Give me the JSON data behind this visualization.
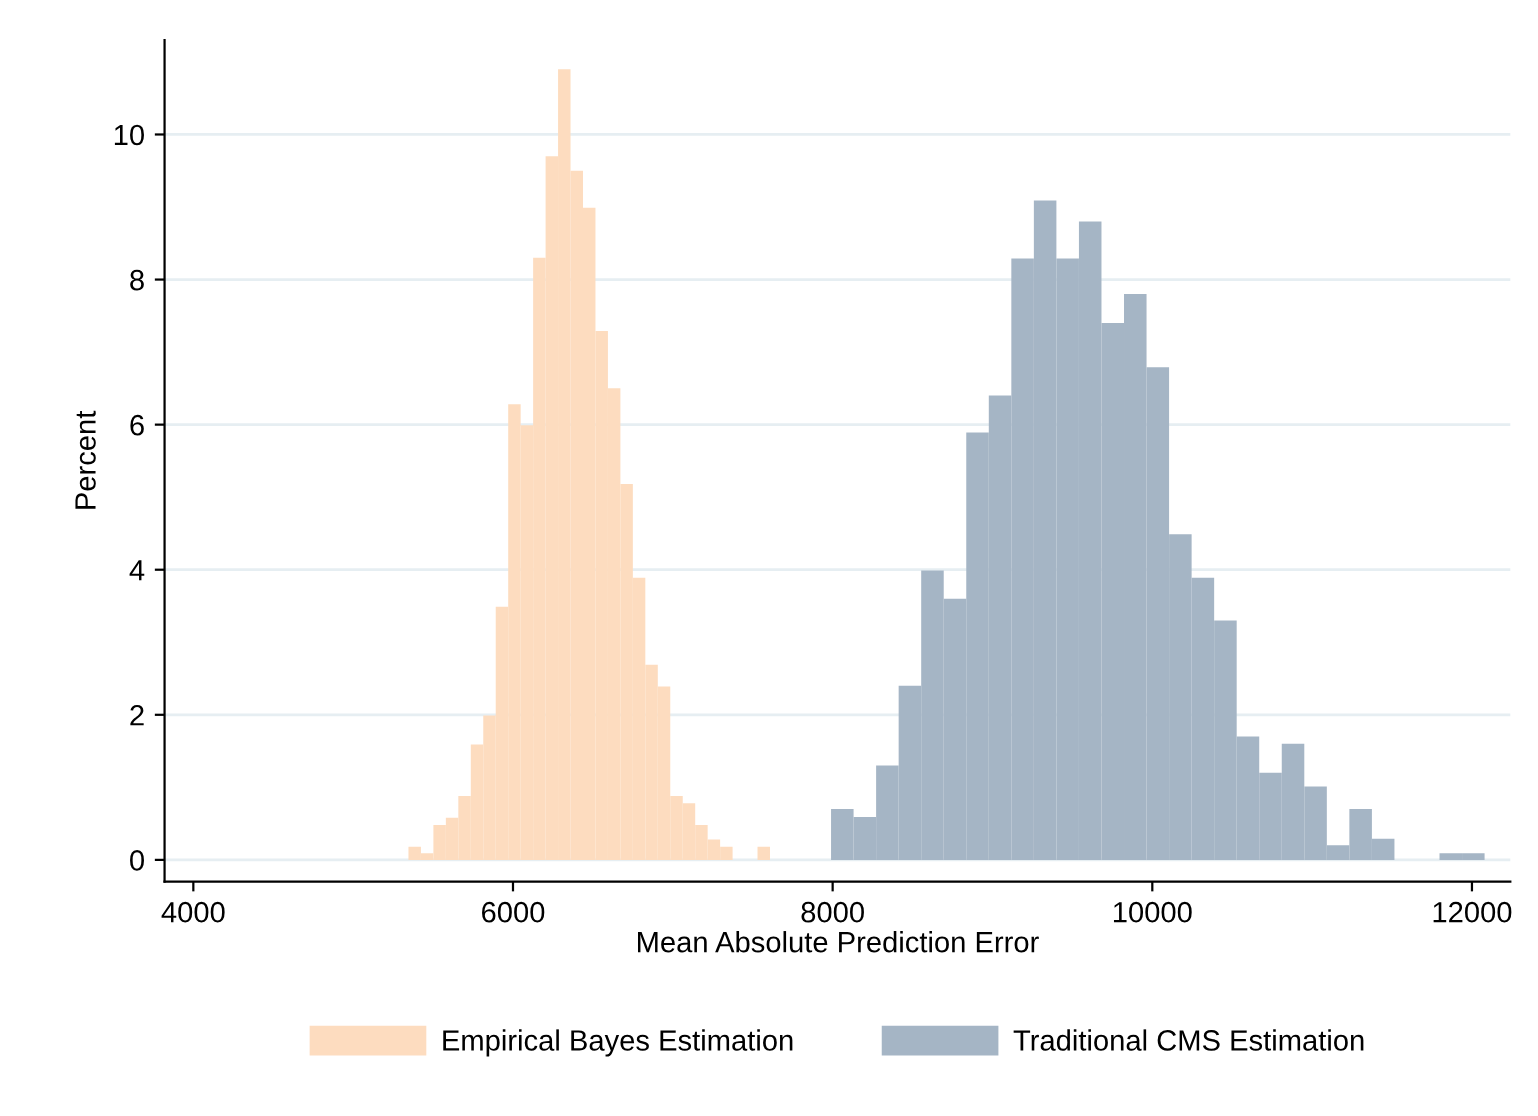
{
  "chart_data": {
    "type": "histogram",
    "xlabel": "Mean Absolute Prediction Error",
    "ylabel": "Percent",
    "bins": [
      5346,
      5424,
      5502,
      5580,
      5658,
      5736,
      5814,
      5892,
      5970,
      6048,
      6126,
      6204,
      6282,
      6360,
      6438,
      6516,
      6594,
      6672,
      6750,
      6828,
      6906,
      6984,
      7062,
      7140,
      7218,
      7296,
      7374,
      7530,
      7608,
      7990,
      8131,
      8272,
      8413,
      8554,
      8695,
      8836,
      8977,
      9118,
      9259,
      9400,
      9541,
      9682,
      9823,
      9964,
      10105,
      10246,
      10387,
      10528,
      10669,
      10810,
      10951,
      11092,
      11233,
      11374,
      11515,
      11797,
      11938,
      12079
    ],
    "series": [
      {
        "name": "Empirical Bayes Estimation",
        "color": "#fddcbf",
        "values": [
          0.18,
          0.09,
          0.48,
          0.58,
          0.88,
          1.59,
          1.99,
          3.49,
          6.28,
          5.99,
          8.3,
          9.7,
          10.9,
          9.5,
          8.99,
          7.29,
          6.5,
          5.18,
          3.89,
          2.69,
          2.39,
          0.88,
          0.78,
          0.48,
          0.28,
          0.18,
          0,
          0.18,
          null,
          null,
          null,
          null,
          null,
          null,
          null,
          null,
          null,
          null,
          null,
          null,
          null,
          null,
          null,
          null,
          null,
          null,
          null,
          null,
          null,
          null,
          null,
          null,
          null,
          null,
          null,
          null,
          null
        ]
      },
      {
        "name": "Traditional CMS Estimation",
        "color": "#a5b5c5",
        "values": [
          null,
          null,
          null,
          null,
          null,
          null,
          null,
          null,
          null,
          null,
          null,
          null,
          null,
          null,
          null,
          null,
          null,
          null,
          null,
          null,
          null,
          null,
          null,
          null,
          null,
          null,
          null,
          null,
          null,
          0.7,
          0.59,
          1.3,
          2.4,
          3.99,
          3.6,
          5.89,
          6.4,
          8.29,
          9.09,
          8.29,
          8.8,
          7.4,
          7.8,
          6.79,
          4.49,
          3.89,
          3.3,
          1.7,
          1.2,
          1.6,
          1.01,
          0.2,
          0.7,
          0.29,
          0,
          0.09,
          0.09
        ]
      }
    ],
    "xlim": [
      3820,
      12240
    ],
    "xticks": [
      4000,
      6000,
      8000,
      10000,
      12000
    ],
    "ylim": [
      -0.3,
      11.3
    ],
    "yticks": [
      0,
      2,
      4,
      6,
      8,
      10
    ],
    "grid": "y",
    "legend": "bottom"
  }
}
